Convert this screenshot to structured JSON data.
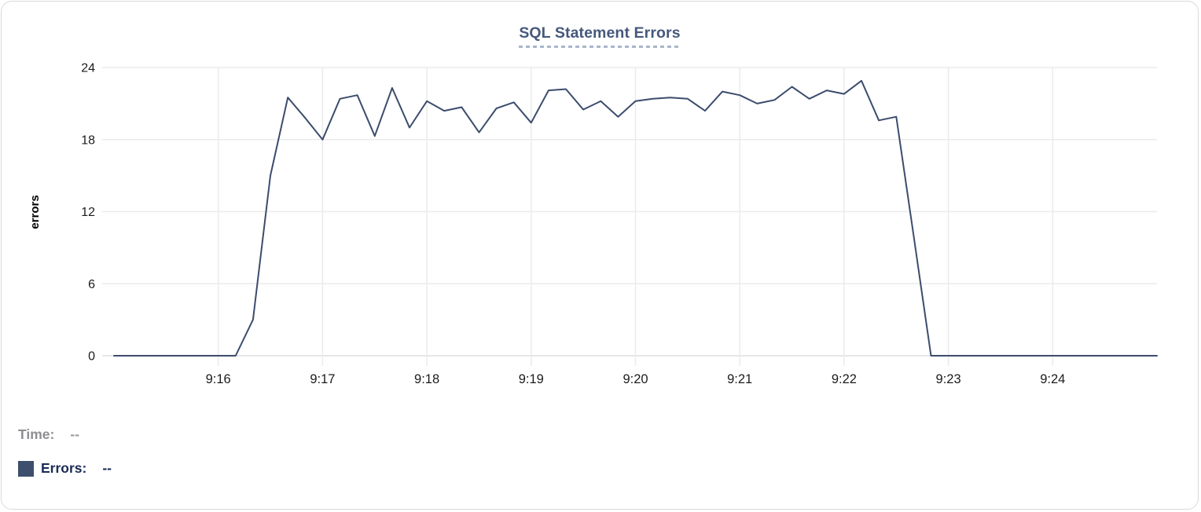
{
  "card": {
    "title": "SQL Statement Errors"
  },
  "tooltip_readout": {
    "time_label": "Time:",
    "time_value": "--",
    "errors_label": "Errors:",
    "errors_value": "--"
  },
  "colors": {
    "series_line": "#3c4c6d",
    "title_text": "#46597c",
    "title_underline": "#a9b6cc",
    "grid": "#ebebeb",
    "axis_baseline": "#dddddd",
    "tick_text": "#1c1c1c",
    "y_axis_label_text": "#000000",
    "time_label_text": "#8e8e92",
    "time_value_text": "#9a9aa0",
    "errors_label_text": "#1a2b55",
    "errors_value_text": "#1a2b55",
    "legend_swatch": "#3d4f6d",
    "card_border": "#d8dade"
  },
  "chart_data": {
    "type": "line",
    "title": "SQL Statement Errors",
    "xlabel": "",
    "ylabel": "errors",
    "ylim": [
      0,
      24
    ],
    "y_ticks": [
      0,
      6,
      12,
      18,
      24
    ],
    "x_tick_labels": [
      "9:16",
      "9:17",
      "9:18",
      "9:19",
      "9:20",
      "9:21",
      "9:22",
      "9:23",
      "9:24"
    ],
    "x_axis_start": "9:15:00",
    "x_axis_end": "9:25:00",
    "sample_interval_seconds": 10,
    "grid": true,
    "legend_position": "bottom-left",
    "series": [
      {
        "name": "Errors",
        "x": [
          "9:15:00",
          "9:15:10",
          "9:15:20",
          "9:15:30",
          "9:15:40",
          "9:15:50",
          "9:16:00",
          "9:16:10",
          "9:16:20",
          "9:16:30",
          "9:16:40",
          "9:16:50",
          "9:17:00",
          "9:17:10",
          "9:17:20",
          "9:17:30",
          "9:17:40",
          "9:17:50",
          "9:18:00",
          "9:18:10",
          "9:18:20",
          "9:18:30",
          "9:18:40",
          "9:18:50",
          "9:19:00",
          "9:19:10",
          "9:19:20",
          "9:19:30",
          "9:19:40",
          "9:19:50",
          "9:20:00",
          "9:20:10",
          "9:20:20",
          "9:20:30",
          "9:20:40",
          "9:20:50",
          "9:21:00",
          "9:21:10",
          "9:21:20",
          "9:21:30",
          "9:21:40",
          "9:21:50",
          "9:22:00",
          "9:22:10",
          "9:22:20",
          "9:22:30",
          "9:22:40",
          "9:22:50",
          "9:23:00",
          "9:23:10",
          "9:23:20",
          "9:23:30",
          "9:23:40",
          "9:23:50",
          "9:24:00",
          "9:24:10",
          "9:24:20",
          "9:24:30",
          "9:24:40",
          "9:24:50",
          "9:25:00"
        ],
        "values": [
          0,
          0,
          0,
          0,
          0,
          0,
          0,
          0,
          3,
          15,
          21.5,
          19.8,
          18,
          21.4,
          21.7,
          18.3,
          22.3,
          19,
          21.2,
          20.4,
          20.7,
          18.6,
          20.6,
          21.1,
          19.4,
          22.1,
          22.2,
          20.5,
          21.2,
          19.9,
          21.2,
          21.4,
          21.5,
          21.4,
          20.4,
          22,
          21.7,
          21,
          21.3,
          22.4,
          21.4,
          22.1,
          21.8,
          22.9,
          19.6,
          19.9,
          10,
          0,
          0,
          0,
          0,
          0,
          0,
          0,
          0,
          0,
          0,
          0,
          0,
          0,
          0
        ]
      }
    ]
  }
}
